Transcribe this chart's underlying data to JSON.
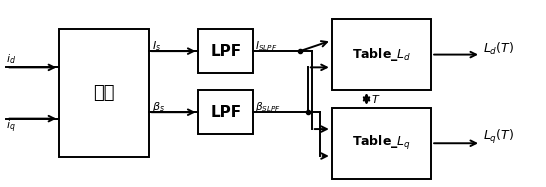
{
  "background": "#ffffff",
  "formula_label": "公式",
  "lpf_label": "LPF",
  "table_ld_label": "Table_$\\mathit{L_d}$",
  "table_lq_label": "Table_$\\mathit{L_q}$",
  "input_id_label": "$\\mathit{i_d}$",
  "input_iq_label": "$\\mathit{i_q}$",
  "Is_label": "$\\mathit{I_s}$",
  "Bs_label": "$\\mathit{\\beta_s}$",
  "Islpf_label": "$\\mathit{I_{SLPF}}$",
  "Bslpf_label": "$\\mathit{\\beta_{SLPF}}$",
  "T_label": "$\\mathit{T}$",
  "Ld_out_label": "$\\mathit{L_d(T)}$",
  "Lq_out_label": "$\\mathit{L_q(T)}$"
}
